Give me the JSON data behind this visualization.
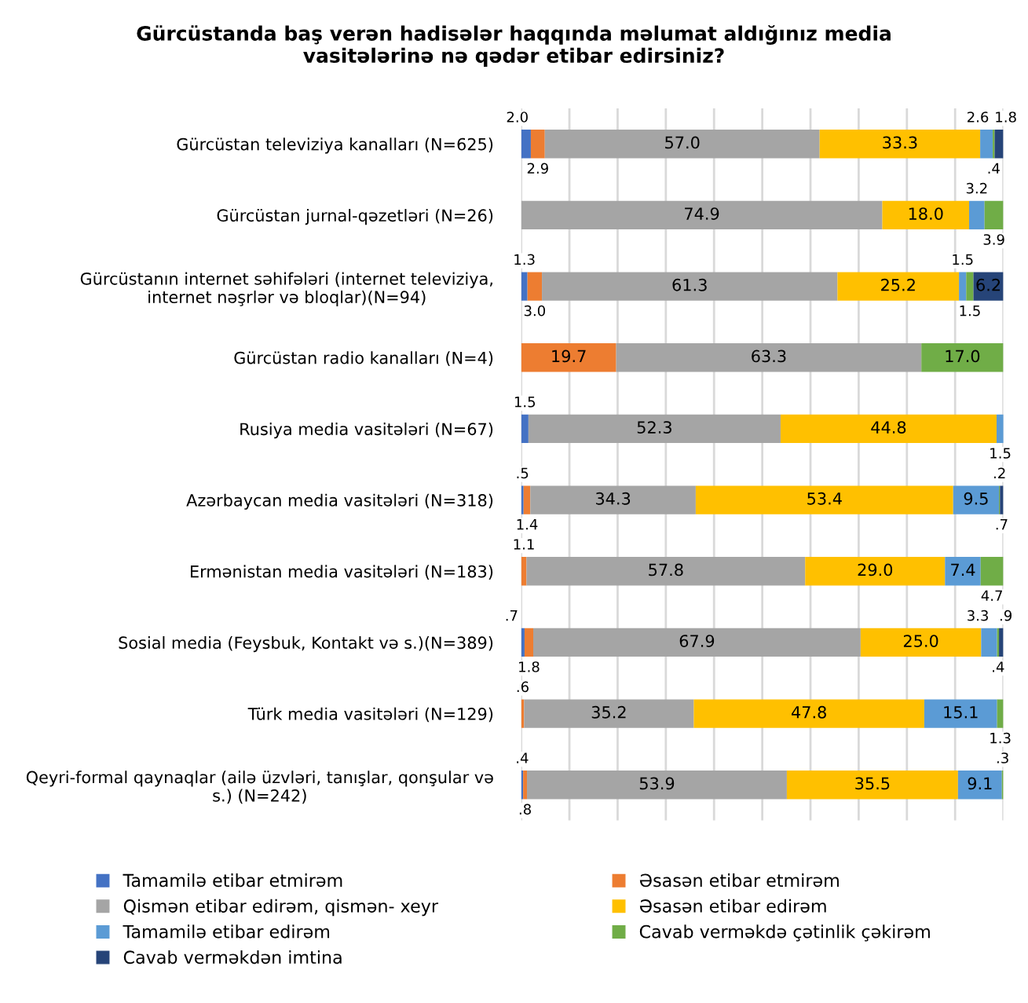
{
  "chart_data": {
    "type": "bar",
    "orientation": "horizontal",
    "stacked": true,
    "title": "Gürcüstanda baş verən hadisələr haqqında məlumat aldığınız media\nvasitələrinə nə qədər etibar edirsiniz?",
    "categories": [
      "Gürcüstan televiziya kanalları (N=625)",
      "Gürcüstan jurnal-qəzetləri (N=26)",
      "Gürcüstanın internet səhifələri (internet televiziya,\ninternet nəşrlər və bloqlar)(N=94)",
      "Gürcüstan radio kanalları (N=4)",
      "Rusiya media vasitələri (N=67)",
      "Azərbaycan media vasitələri (N=318)",
      "Ermənistan media vasitələri (N=183)",
      "Sosial media (Feysbuk, Kontakt və s.)(N=389)",
      "Türk media vasitələri (N=129)",
      "Qeyri-formal qaynaqlar (ailə üzvləri, tanışlar, qonşular və\ns.) (N=242)"
    ],
    "series": [
      {
        "name": "Tamamilə etibar etmirəm",
        "color": "#4472c4",
        "values": [
          2.0,
          null,
          1.3,
          null,
          1.5,
          0.5,
          null,
          0.7,
          null,
          0.4
        ],
        "value_labels": [
          "2.0",
          null,
          "1.3",
          null,
          "1.5",
          ".5",
          null,
          ".7",
          null,
          ".4"
        ]
      },
      {
        "name": "Əsasən etibar etmirəm",
        "color": "#ed7d31",
        "values": [
          2.9,
          null,
          3.0,
          19.7,
          null,
          1.4,
          1.1,
          1.8,
          0.6,
          0.8
        ],
        "value_labels": [
          "2.9",
          null,
          "3.0",
          "19.7",
          null,
          "1.4",
          "1.1",
          "1.8",
          ".6",
          ".8"
        ]
      },
      {
        "name": "Qismən etibar edirəm, qismən- xeyr",
        "color": "#a5a5a5",
        "values": [
          57.0,
          74.9,
          61.3,
          63.3,
          52.3,
          34.3,
          57.8,
          67.9,
          35.2,
          53.9
        ],
        "value_labels": [
          "57.0",
          "74.9",
          "61.3",
          "63.3",
          "52.3",
          "34.3",
          "57.8",
          "67.9",
          "35.2",
          "53.9"
        ]
      },
      {
        "name": "Əsasən etibar edirəm",
        "color": "#ffc000",
        "values": [
          33.3,
          18.0,
          25.2,
          null,
          44.8,
          53.4,
          29.0,
          25.0,
          47.8,
          35.5
        ],
        "value_labels": [
          "33.3",
          "18.0",
          "25.2",
          null,
          "44.8",
          "53.4",
          "29.0",
          "25.0",
          "47.8",
          "35.5"
        ]
      },
      {
        "name": "Tamamilə etibar edirəm",
        "color": "#5b9bd5",
        "values": [
          2.6,
          3.2,
          1.5,
          null,
          1.5,
          9.5,
          7.4,
          3.3,
          15.1,
          9.1
        ],
        "value_labels": [
          "2.6",
          "3.2",
          "1.5",
          null,
          "1.5",
          "9.5",
          "7.4",
          "3.3",
          "15.1",
          "9.1"
        ]
      },
      {
        "name": "Cavab verməkdə çətinlik çəkirəm",
        "color": "#70ad47",
        "values": [
          0.4,
          3.9,
          1.5,
          17.0,
          null,
          0.2,
          4.7,
          0.4,
          1.3,
          0.3
        ],
        "value_labels": [
          ".4",
          "3.9",
          "1.5",
          "17.0",
          null,
          ".2",
          "4.7",
          ".4",
          "1.3",
          ".3"
        ]
      },
      {
        "name": "Cavab verməkdən imtina",
        "color": "#264478",
        "values": [
          1.8,
          null,
          6.2,
          null,
          null,
          0.7,
          null,
          0.9,
          null,
          null
        ],
        "value_labels": [
          "1.8",
          null,
          "6.2",
          null,
          null,
          ".7",
          null,
          ".9",
          null,
          null
        ]
      }
    ],
    "xlim": [
      0,
      100
    ],
    "xticks": [
      {
        "value": 0,
        "label": null
      },
      {
        "value": 10,
        "label": null
      },
      {
        "value": 20,
        "label": null
      },
      {
        "value": 30,
        "label": null
      },
      {
        "value": 40,
        "label": null
      },
      {
        "value": 50,
        "label": null
      },
      {
        "value": 60,
        "label": null
      },
      {
        "value": 70,
        "label": null
      },
      {
        "value": 80,
        "label": null
      },
      {
        "value": 90,
        "label": null
      },
      {
        "value": 100,
        "label": null
      }
    ],
    "tick_labels": "y",
    "grid": "x",
    "legend": "bottom"
  }
}
